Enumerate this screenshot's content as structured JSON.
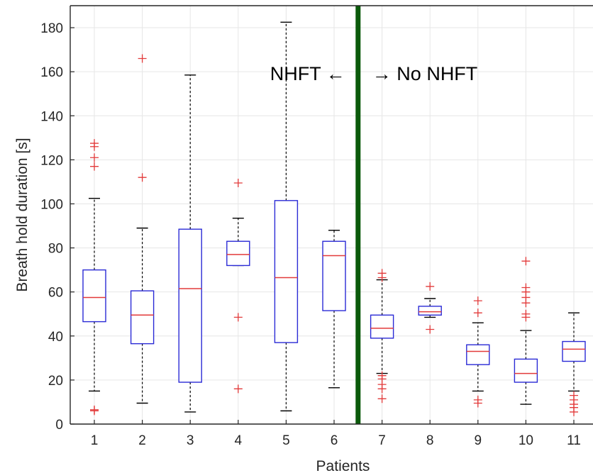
{
  "chart_data": {
    "type": "box",
    "title": "",
    "xlabel": "Patients",
    "ylabel": "Breath hold duration [s]",
    "ylim": [
      0,
      190
    ],
    "yticks": [
      0,
      20,
      40,
      60,
      80,
      100,
      120,
      140,
      160,
      180
    ],
    "grid": true,
    "categories": [
      "1",
      "2",
      "3",
      "4",
      "5",
      "6",
      "7",
      "8",
      "9",
      "10",
      "11"
    ],
    "boxes": [
      {
        "category": "1",
        "min": 15,
        "q1": 46.5,
        "median": 57.5,
        "q3": 70,
        "max": 102.5,
        "outliers": [
          6,
          6.5,
          117,
          121,
          126,
          127.5
        ]
      },
      {
        "category": "2",
        "min": 9.5,
        "q1": 36.5,
        "median": 49.5,
        "q3": 60.5,
        "max": 89,
        "outliers": [
          112,
          166
        ]
      },
      {
        "category": "3",
        "min": 5.5,
        "q1": 19,
        "median": 61.5,
        "q3": 88.5,
        "max": 158.5,
        "outliers": []
      },
      {
        "category": "4",
        "min": 72,
        "q1": 72,
        "median": 77,
        "q3": 83,
        "max": 93.5,
        "outliers": [
          16,
          48.5,
          109.5
        ]
      },
      {
        "category": "5",
        "min": 6,
        "q1": 37,
        "median": 66.5,
        "q3": 101.5,
        "max": 182.5,
        "outliers": []
      },
      {
        "category": "6",
        "min": 16.5,
        "q1": 51.5,
        "median": 76.5,
        "q3": 83,
        "max": 88,
        "outliers": []
      },
      {
        "category": "7",
        "min": 23,
        "q1": 39,
        "median": 43.5,
        "q3": 49.5,
        "max": 65.5,
        "outliers": [
          11.5,
          16,
          18,
          20.5,
          22,
          66.5,
          68.5
        ]
      },
      {
        "category": "8",
        "min": 48.5,
        "q1": 49.5,
        "median": 51,
        "q3": 53.5,
        "max": 57,
        "outliers": [
          43,
          62.5
        ]
      },
      {
        "category": "9",
        "min": 15,
        "q1": 27,
        "median": 33,
        "q3": 36,
        "max": 46,
        "outliers": [
          9.5,
          11,
          50.5,
          56
        ]
      },
      {
        "category": "10",
        "min": 9,
        "q1": 19,
        "median": 23,
        "q3": 29.5,
        "max": 42.5,
        "outliers": [
          48.5,
          50,
          55,
          57.5,
          60,
          62,
          74
        ]
      },
      {
        "category": "11",
        "min": 15,
        "q1": 28.5,
        "median": 34,
        "q3": 37.5,
        "max": 50.5,
        "outliers": [
          5.5,
          7.5,
          9,
          11,
          13
        ]
      }
    ],
    "divider_after_category": "6",
    "annotations": [
      {
        "text": "NHFT ←",
        "side": "left"
      },
      {
        "text": "→ No NHFT",
        "side": "right"
      }
    ],
    "colors": {
      "box": "#2b2bd6",
      "median": "#e23a3a",
      "outlier": "#e23a3a",
      "whisker": "#000000",
      "divider": "#0b5a0b",
      "grid": "#e6e6e6",
      "axis": "#262626"
    }
  }
}
